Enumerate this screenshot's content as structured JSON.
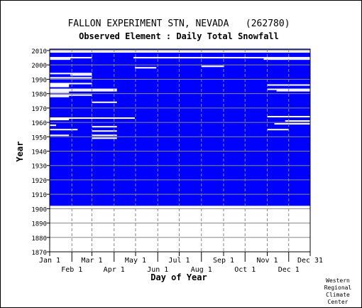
{
  "chart_data": {
    "type": "heatmap",
    "title": "FALLON EXPERIMENT STN, NEVADA   (262780)",
    "subtitle": "Observed Element : Daily Total Snowfall",
    "xlabel": "Day of Year",
    "ylabel": "Year",
    "ylim": [
      1870,
      2011
    ],
    "xlim": [
      1,
      365
    ],
    "y_ticks": [
      1870,
      1880,
      1890,
      1900,
      1910,
      1920,
      1930,
      1940,
      1950,
      1960,
      1970,
      1980,
      1990,
      2000,
      2010
    ],
    "x_ticks_row1": [
      {
        "label": "Jan 1",
        "day": 1
      },
      {
        "label": "Mar 1",
        "day": 60
      },
      {
        "label": "May 1",
        "day": 121
      },
      {
        "label": "Jul 1",
        "day": 182
      },
      {
        "label": "Sep 1",
        "day": 244
      },
      {
        "label": "Nov 1",
        "day": 305
      },
      {
        "label": "Dec 31",
        "day": 365
      }
    ],
    "x_ticks_row2": [
      {
        "label": "Feb 1",
        "day": 32
      },
      {
        "label": "Apr 1",
        "day": 91
      },
      {
        "label": "Jun 1",
        "day": 152
      },
      {
        "label": "Aug 1",
        "day": 213
      },
      {
        "label": "Oct 1",
        "day": 274
      },
      {
        "label": "Dec 1",
        "day": 335
      }
    ],
    "record_start_year": 1902,
    "record_end_year": 2011,
    "colors": {
      "data": "#0000ff",
      "missing": "#ffffff",
      "grid": "#888888"
    },
    "missing_segments": [
      {
        "year": 2009,
        "start": 1,
        "end": 365
      },
      {
        "year": 2010,
        "start": 1,
        "end": 365
      },
      {
        "year": 2005,
        "start": 1,
        "end": 60
      },
      {
        "year": 2005,
        "start": 118,
        "end": 365
      },
      {
        "year": 2004,
        "start": 1,
        "end": 30
      },
      {
        "year": 2004,
        "start": 300,
        "end": 365
      },
      {
        "year": 1998,
        "start": 120,
        "end": 150
      },
      {
        "year": 1999,
        "start": 213,
        "end": 245
      },
      {
        "year": 1994,
        "start": 1,
        "end": 60
      },
      {
        "year": 1993,
        "start": 30,
        "end": 60
      },
      {
        "year": 1991,
        "start": 1,
        "end": 60
      },
      {
        "year": 1987,
        "start": 1,
        "end": 60
      },
      {
        "year": 1986,
        "start": 1,
        "end": 28
      },
      {
        "year": 1985,
        "start": 1,
        "end": 28
      },
      {
        "year": 1983,
        "start": 1,
        "end": 95
      },
      {
        "year": 1982,
        "start": 1,
        "end": 95
      },
      {
        "year": 1983,
        "start": 305,
        "end": 365
      },
      {
        "year": 1982,
        "start": 318,
        "end": 365
      },
      {
        "year": 1981,
        "start": 1,
        "end": 28
      },
      {
        "year": 1979,
        "start": 1,
        "end": 60
      },
      {
        "year": 1978,
        "start": 1,
        "end": 28
      },
      {
        "year": 1986,
        "start": 305,
        "end": 365
      },
      {
        "year": 1974,
        "start": 60,
        "end": 95
      },
      {
        "year": 1964,
        "start": 305,
        "end": 365
      },
      {
        "year": 1963,
        "start": 1,
        "end": 120
      },
      {
        "year": 1962,
        "start": 1,
        "end": 28
      },
      {
        "year": 1961,
        "start": 330,
        "end": 365
      },
      {
        "year": 1959,
        "start": 315,
        "end": 365
      },
      {
        "year": 1958,
        "start": 1,
        "end": 10
      },
      {
        "year": 1957,
        "start": 60,
        "end": 95
      },
      {
        "year": 1955,
        "start": 1,
        "end": 40
      },
      {
        "year": 1955,
        "start": 305,
        "end": 335
      },
      {
        "year": 1954,
        "start": 60,
        "end": 95
      },
      {
        "year": 1951,
        "start": 1,
        "end": 28
      },
      {
        "year": 1951,
        "start": 60,
        "end": 95
      },
      {
        "year": 1949,
        "start": 60,
        "end": 95
      }
    ]
  },
  "footer": {
    "line1": "Western",
    "line2": "Regional",
    "line3": "Climate",
    "line4": "Center"
  }
}
